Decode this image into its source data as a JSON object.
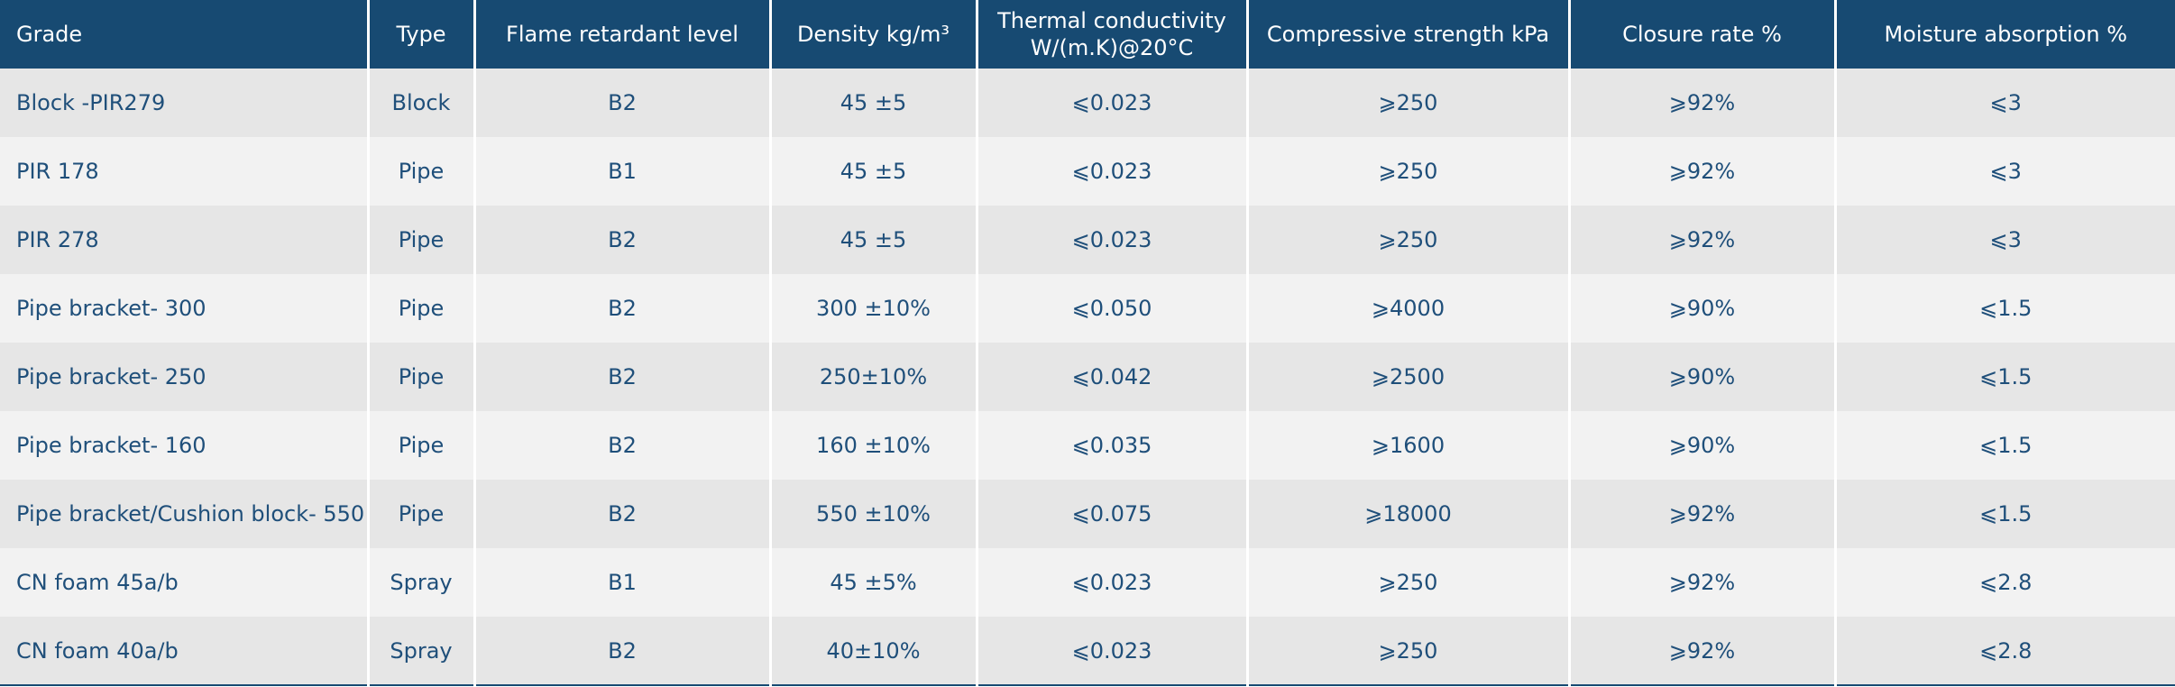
{
  "table": {
    "header": [
      "Grade",
      "Type",
      "Flame retardant level",
      "Density kg/m³",
      [
        "Thermal conductivity",
        "W/(m.K)@20°C"
      ],
      "Compressive strength kPa",
      "Closure rate %",
      "Moisture absorption %"
    ],
    "rows": [
      [
        "Block -PIR279",
        "Block",
        "B2",
        "45 ±5",
        "⩽0.023",
        "⩾250",
        "⩾92%",
        "⩽3"
      ],
      [
        "PIR 178",
        "Pipe",
        "B1",
        "45 ±5",
        "⩽0.023",
        "⩾250",
        "⩾92%",
        "⩽3"
      ],
      [
        "PIR 278",
        "Pipe",
        "B2",
        "45 ±5",
        "⩽0.023",
        "⩾250",
        "⩾92%",
        "⩽3"
      ],
      [
        "Pipe bracket- 300",
        "Pipe",
        "B2",
        "300 ±10%",
        "⩽0.050",
        "⩾4000",
        "⩾90%",
        "⩽1.5"
      ],
      [
        "Pipe bracket- 250",
        "Pipe",
        "B2",
        "250±10%",
        "⩽0.042",
        "⩾2500",
        "⩾90%",
        "⩽1.5"
      ],
      [
        "Pipe bracket- 160",
        "Pipe",
        "B2",
        "160 ±10%",
        "⩽0.035",
        "⩾1600",
        "⩾90%",
        "⩽1.5"
      ],
      [
        "Pipe bracket/Cushion block- 550",
        "Pipe",
        "B2",
        "550 ±10%",
        "⩽0.075",
        "⩾18000",
        "⩾92%",
        "⩽1.5"
      ],
      [
        "CN foam 45a/b",
        "Spray",
        "B1",
        "45 ±5%",
        "⩽0.023",
        "⩾250",
        "⩾92%",
        "⩽2.8"
      ],
      [
        "CN foam 40a/b",
        "Spray",
        "B2",
        "40±10%",
        "⩽0.023",
        "⩾250",
        "⩾92%",
        "⩽2.8"
      ]
    ]
  }
}
